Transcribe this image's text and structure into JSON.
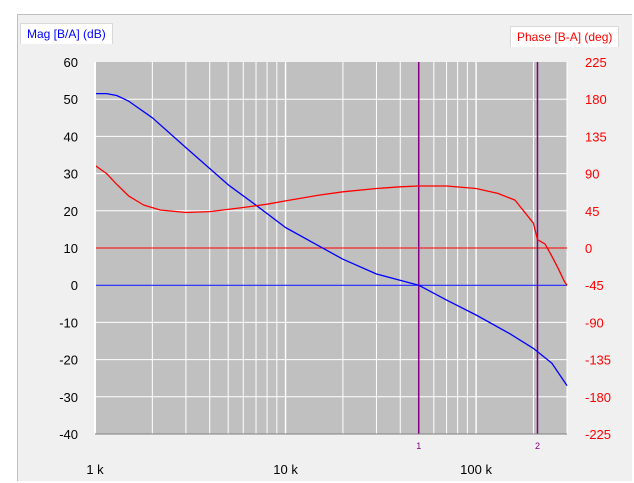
{
  "panel": {
    "left_axis_title": "Mag [B/A] (dB)",
    "right_axis_title": "Phase [B-A] (deg)"
  },
  "colors": {
    "magnitude": "#0000ff",
    "phase": "#ff0000",
    "cursor": "#800080",
    "plot_bg": "#c0c0c0",
    "grid": "#ffffff"
  },
  "chart_data": {
    "type": "line",
    "x_scale": "log",
    "xlim": [
      1000,
      300000
    ],
    "x_tick_labels": [
      {
        "value": 1000,
        "label": "1 k"
      },
      {
        "value": 10000,
        "label": "10 k"
      },
      {
        "value": 100000,
        "label": "100 k"
      }
    ],
    "ylabel": "Mag [B/A] (dB)",
    "ylim": [
      -40,
      60
    ],
    "y_ticks": [
      60,
      50,
      40,
      30,
      20,
      10,
      0,
      -10,
      -20,
      -30,
      -40
    ],
    "y2label": "Phase [B-A] (deg)",
    "y2lim": [
      -225,
      225
    ],
    "y2_ticks": [
      225,
      180,
      135,
      90,
      45,
      0,
      -45,
      -90,
      -135,
      -180,
      -225
    ],
    "grid": true,
    "series": [
      {
        "axis": "left",
        "x": [
          1000,
          1150,
          1300,
          1500,
          2000,
          3000,
          5000,
          7000,
          10000,
          15000,
          20000,
          30000,
          50000,
          70000,
          100000,
          150000,
          200000,
          250000,
          300000
        ],
        "values": [
          51.5,
          51.5,
          51,
          49.5,
          45,
          37,
          27,
          21.5,
          15.5,
          10.5,
          7,
          3,
          0,
          -4,
          -8,
          -13,
          -17,
          -21,
          -27
        ]
      },
      {
        "axis": "right",
        "x": [
          1000,
          1150,
          1300,
          1500,
          1800,
          2200,
          3000,
          4000,
          6000,
          8000,
          10000,
          15000,
          20000,
          30000,
          40000,
          50000,
          70000,
          100000,
          130000,
          160000,
          200000,
          210000,
          230000,
          250000,
          270000,
          290000,
          300000
        ],
        "values": [
          100,
          90,
          77,
          63,
          52,
          46,
          43,
          44,
          49,
          53,
          57,
          64,
          68,
          72,
          74,
          75,
          75,
          72,
          66,
          58,
          30,
          10,
          5,
          -10,
          -25,
          -40,
          -45
        ]
      }
    ],
    "markers": [
      {
        "x": 50000,
        "label": "1"
      },
      {
        "x": 210000,
        "label": "2"
      }
    ]
  }
}
